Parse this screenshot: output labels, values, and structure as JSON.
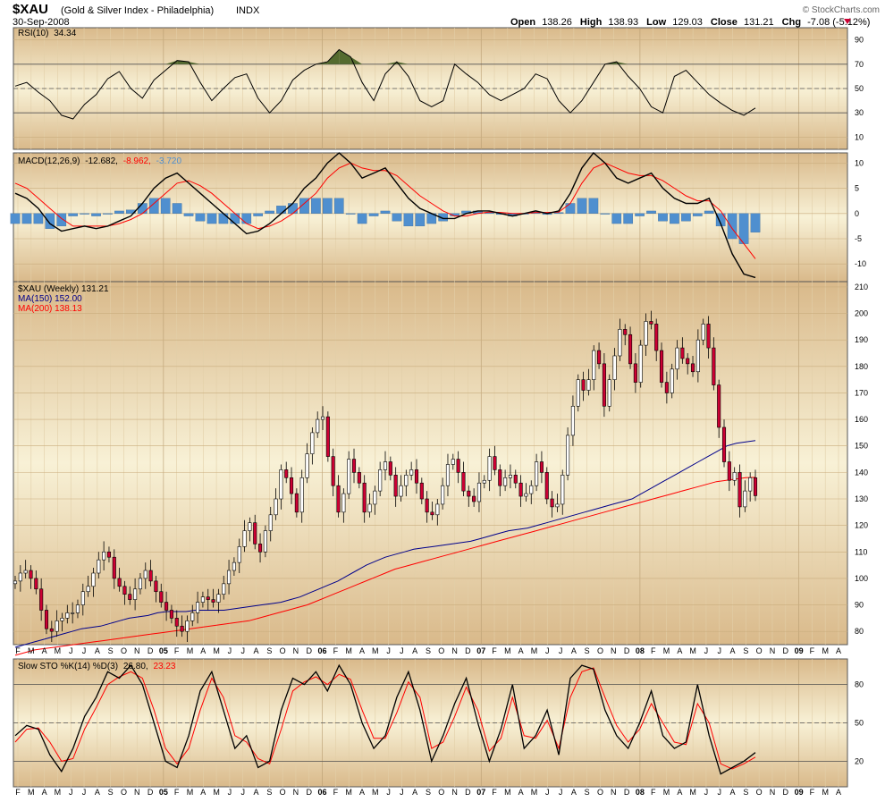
{
  "header": {
    "symbol": "$XAU",
    "name": "(Gold & Silver Index - Philadelphia)",
    "exchange": "INDX",
    "date": "30-Sep-2008",
    "open_label": "Open",
    "open": "138.26",
    "high_label": "High",
    "high": "138.93",
    "low_label": "Low",
    "low": "129.03",
    "close_label": "Close",
    "close": "131.21",
    "chg_label": "Chg",
    "chg": "-7.08 (-5.12%)",
    "watermark": "© StockCharts.com"
  },
  "colors": {
    "panel_top": "#d9b98a",
    "panel_mid": "#f8f1d6",
    "price_line_black": "#000000",
    "ma150": "#00008b",
    "ma200": "#ff0000",
    "histogram": "#4f8fcf",
    "candle_up": "#ffffff",
    "candle_down": "#cc0033",
    "rsi_fill": "#556b2f",
    "chg_neg": "#cc0033"
  },
  "time_axis": {
    "labels": [
      "F",
      "M",
      "A",
      "M",
      "J",
      "J",
      "A",
      "S",
      "O",
      "N",
      "D",
      "05",
      "F",
      "M",
      "A",
      "M",
      "J",
      "J",
      "A",
      "S",
      "O",
      "N",
      "D",
      "06",
      "F",
      "M",
      "A",
      "M",
      "J",
      "J",
      "A",
      "S",
      "O",
      "N",
      "D",
      "07",
      "F",
      "M",
      "A",
      "M",
      "J",
      "J",
      "A",
      "S",
      "O",
      "N",
      "D",
      "08",
      "F",
      "M",
      "A",
      "M",
      "J",
      "J",
      "A",
      "S",
      "O",
      "N",
      "D",
      "09",
      "F",
      "M",
      "A"
    ],
    "bold_labels": [
      "05",
      "06",
      "07",
      "08",
      "09"
    ]
  },
  "chart_data": [
    {
      "type": "line",
      "panel": "rsi",
      "title": "RSI(10) 34.34",
      "title_parts": [
        "RSI(10)",
        "34.34"
      ],
      "ylim": [
        0,
        100
      ],
      "y_ticks": [
        10,
        30,
        50,
        70,
        90
      ],
      "reference_lines": [
        30,
        50,
        70
      ],
      "grid": true,
      "series": [
        {
          "name": "RSI(10)",
          "values": [
            52,
            55,
            47,
            40,
            28,
            25,
            37,
            45,
            58,
            64,
            50,
            42,
            57,
            65,
            73,
            72,
            55,
            40,
            50,
            59,
            62,
            42,
            30,
            40,
            57,
            65,
            70,
            72,
            82,
            76,
            55,
            40,
            62,
            72,
            60,
            40,
            35,
            40,
            70,
            62,
            55,
            45,
            40,
            45,
            50,
            62,
            58,
            40,
            30,
            40,
            55,
            70,
            72,
            60,
            50,
            35,
            30,
            60,
            65,
            55,
            45,
            38,
            32,
            28,
            34
          ]
        }
      ]
    },
    {
      "type": "line",
      "panel": "macd",
      "title": "MACD(12,26,9) -12.682, -8.962, -3.720",
      "title_parts": [
        "MACD(12,26,9)",
        "-12.682,",
        "-8.962,",
        "-3.720"
      ],
      "ylim": [
        -13.5,
        12
      ],
      "y_ticks": [
        -10,
        -5,
        0,
        5,
        10
      ],
      "grid": true,
      "series": [
        {
          "name": "MACD",
          "values": [
            4,
            3,
            1,
            -2,
            -3.5,
            -3,
            -2.5,
            -3,
            -2.5,
            -1.5,
            -0.5,
            2,
            5,
            7,
            8,
            6,
            4,
            2,
            0,
            -2,
            -4,
            -3.5,
            -2,
            0,
            2,
            5,
            7,
            10,
            12,
            10,
            7,
            8,
            9,
            6,
            3,
            1,
            0,
            -1,
            -1,
            0,
            0.5,
            0.5,
            0,
            -0.5,
            0,
            0.5,
            0,
            0.5,
            4,
            9,
            12,
            10,
            7,
            6,
            7,
            8,
            5,
            3,
            2,
            2,
            3,
            -2,
            -8,
            -12,
            -12.682
          ]
        },
        {
          "name": "Signal",
          "values": [
            6,
            5,
            3,
            1,
            -1,
            -2.5,
            -2.5,
            -2.5,
            -2.5,
            -2,
            -1.2,
            0,
            2,
            4,
            6,
            6.5,
            5.5,
            4,
            2,
            0,
            -2,
            -3,
            -2.5,
            -1.5,
            0,
            2,
            4,
            7,
            9,
            10,
            9,
            8.5,
            8.5,
            7.5,
            5.5,
            3.5,
            2,
            0.5,
            -0.5,
            -0.5,
            0,
            0.3,
            0.2,
            0,
            0,
            0.2,
            0.2,
            0.3,
            2,
            6,
            9,
            10,
            9,
            8,
            7.5,
            7.5,
            6.5,
            5,
            3.5,
            2.5,
            2.5,
            0.5,
            -3,
            -6,
            -8.962
          ]
        },
        {
          "name": "Histogram",
          "values": [
            -2,
            -2,
            -2,
            -3,
            -2.5,
            -0.5,
            0,
            -0.5,
            0,
            0.5,
            0.7,
            2,
            3,
            3,
            2,
            -0.5,
            -1.5,
            -2,
            -2,
            -2,
            -2,
            -0.5,
            0.5,
            1.5,
            2,
            3,
            3,
            3,
            3,
            0,
            -2,
            -0.5,
            0.5,
            -1.5,
            -2.5,
            -2.5,
            -2,
            -1.5,
            -0.5,
            0.5,
            0.5,
            0.2,
            -0.2,
            -0.5,
            0,
            0.3,
            -0.2,
            0.2,
            2,
            3,
            3,
            0,
            -2,
            -2,
            -0.5,
            0.5,
            -1.5,
            -2,
            -1.5,
            -0.5,
            0.5,
            -2.5,
            -5,
            -6,
            -3.72
          ]
        }
      ]
    },
    {
      "type": "candlestick",
      "panel": "price",
      "title": "$XAU (Weekly) 131.21",
      "legend": [
        {
          "name": "$XAU (Weekly) 131.21",
          "color": "#000000"
        },
        {
          "name": "MA(150) 152.00",
          "color": "#00008b"
        },
        {
          "name": "MA(200) 138.13",
          "color": "#ff0000"
        }
      ],
      "ylim": [
        75,
        212
      ],
      "y_ticks": [
        80,
        90,
        100,
        110,
        120,
        130,
        140,
        150,
        160,
        170,
        180,
        190,
        200,
        210
      ],
      "grid": true,
      "close": [
        99,
        102,
        103,
        100,
        96,
        88,
        81,
        80,
        84,
        85,
        87,
        87,
        90,
        95,
        97,
        102,
        107,
        110,
        108,
        100,
        97,
        94,
        92,
        96,
        100,
        103,
        99,
        95,
        91,
        88,
        85,
        82,
        80,
        84,
        87,
        91,
        93,
        92,
        91,
        94,
        98,
        103,
        106,
        112,
        118,
        121,
        113,
        110,
        118,
        124,
        130,
        141,
        138,
        132,
        125,
        138,
        147,
        155,
        160,
        161,
        146,
        135,
        125,
        132,
        145,
        140,
        136,
        125,
        128,
        133,
        141,
        144,
        139,
        131,
        135,
        139,
        141,
        136,
        130,
        125,
        124,
        128,
        135,
        143,
        145,
        140,
        133,
        131,
        129,
        136,
        137,
        146,
        141,
        135,
        138,
        139,
        136,
        131,
        132,
        135,
        144,
        140,
        130,
        127,
        128,
        139,
        154,
        165,
        175,
        171,
        175,
        186,
        181,
        165,
        175,
        184,
        194,
        192,
        181,
        174,
        188,
        197,
        196,
        186,
        174,
        170,
        179,
        187,
        183,
        181,
        178,
        190,
        196,
        187,
        173,
        157,
        144,
        137,
        140,
        127,
        133,
        138,
        131.21
      ],
      "ma150": [
        74,
        75,
        76,
        77,
        78,
        79,
        80,
        81,
        81.5,
        82,
        83,
        84,
        85,
        85.5,
        86,
        87,
        87.5,
        87.5,
        87.5,
        88,
        88,
        88,
        88,
        88.5,
        89,
        89.5,
        90,
        90.5,
        91,
        92,
        93,
        94.5,
        96,
        97.5,
        99,
        101,
        103,
        105,
        106.5,
        108,
        109,
        110,
        111,
        111.5,
        112,
        112.5,
        113,
        113.5,
        114,
        115,
        116,
        117,
        118,
        118.5,
        119,
        120,
        121,
        122,
        123,
        124,
        125,
        126,
        127,
        128,
        129,
        130,
        132,
        134,
        136,
        138,
        140,
        142,
        144,
        146,
        148,
        150,
        151,
        151.5,
        152
      ],
      "ma200": [
        71,
        72,
        73,
        73.5,
        74,
        74.5,
        75,
        75.5,
        76,
        76.5,
        77,
        77.5,
        78,
        78.5,
        79,
        79.5,
        80,
        80.5,
        81,
        81.5,
        82,
        82.5,
        83,
        83.5,
        84,
        85,
        86,
        87,
        88,
        89,
        90,
        91.5,
        93,
        94.5,
        96,
        97.5,
        99,
        100.5,
        102,
        103.5,
        104.5,
        105.5,
        106.5,
        107.5,
        108.5,
        109.5,
        110.5,
        111.5,
        112.5,
        113.5,
        114.5,
        115.5,
        116.5,
        117.5,
        118.5,
        119.5,
        120.5,
        121.5,
        122.5,
        123.5,
        124.5,
        125.5,
        126.5,
        127.5,
        128.5,
        129.5,
        130.5,
        131.5,
        132.5,
        133.5,
        134.5,
        135.5,
        136.5,
        137,
        137.5,
        138,
        138.13
      ]
    },
    {
      "type": "line",
      "panel": "stochastic",
      "title": "Slow STO %K(14) %D(3) 26.80, 23.23",
      "title_parts": [
        "Slow STO %K(14) %D(3)",
        "26.80,",
        "23.23"
      ],
      "ylim": [
        0,
        100
      ],
      "y_ticks": [
        20,
        50,
        80
      ],
      "reference_lines": [
        20,
        50,
        80
      ],
      "grid": true,
      "series": [
        {
          "name": "%K",
          "values": [
            40,
            48,
            45,
            25,
            12,
            30,
            55,
            70,
            90,
            85,
            95,
            80,
            50,
            20,
            15,
            40,
            75,
            90,
            60,
            30,
            40,
            15,
            20,
            60,
            85,
            80,
            90,
            75,
            95,
            80,
            50,
            30,
            40,
            70,
            90,
            60,
            20,
            40,
            65,
            85,
            50,
            20,
            45,
            80,
            30,
            40,
            60,
            25,
            85,
            95,
            92,
            60,
            40,
            30,
            50,
            75,
            40,
            30,
            35,
            80,
            40,
            10,
            15,
            20,
            26.8
          ]
        },
        {
          "name": "%D",
          "values": [
            35,
            45,
            46,
            35,
            20,
            22,
            45,
            62,
            80,
            86,
            90,
            85,
            60,
            30,
            18,
            30,
            60,
            85,
            70,
            40,
            35,
            22,
            18,
            45,
            75,
            82,
            86,
            80,
            88,
            84,
            60,
            38,
            38,
            58,
            82,
            70,
            30,
            35,
            55,
            78,
            60,
            28,
            38,
            70,
            40,
            38,
            52,
            30,
            70,
            90,
            93,
            70,
            48,
            35,
            45,
            65,
            50,
            35,
            33,
            65,
            50,
            18,
            14,
            18,
            23.23
          ]
        }
      ]
    }
  ]
}
